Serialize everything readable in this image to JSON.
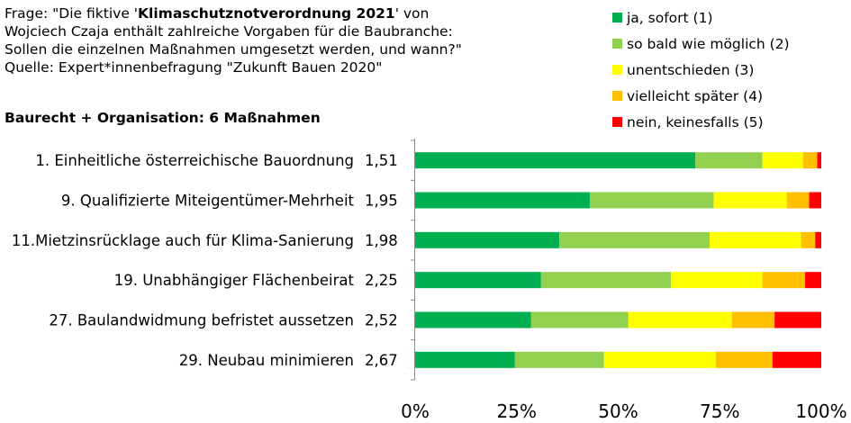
{
  "header": {
    "line1_prefix": "Frage: \"Die fiktive '",
    "line1_bold": "Klimaschutznotverordnung 2021",
    "line1_suffix": "' von",
    "line2": "Wojciech Czaja enthält zahlreiche Vorgaben für die Baubranche:",
    "line3": "Sollen die einzelnen Maßnahmen umgesetzt werden, und wann?\"",
    "line4": "Quelle: Expert*innenbefragung \"Zukunft Bauen 2020\"",
    "subtitle": "Baurecht + Organisation: 6 Maßnahmen"
  },
  "legend": [
    {
      "label": "ja, sofort (1)",
      "color": "#00B050"
    },
    {
      "label": "so bald wie möglich (2)",
      "color": "#92D050"
    },
    {
      "label": "unentschieden (3)",
      "color": "#FFFF00"
    },
    {
      "label": "vielleicht später (4)",
      "color": "#FFC000"
    },
    {
      "label": "nein, keinesfalls (5)",
      "color": "#FF0000"
    }
  ],
  "chart_data": {
    "type": "bar",
    "orientation": "horizontal",
    "stacked": true,
    "stacking": "percent",
    "categories": [
      "1. Einheitliche österreichische Bauordnung",
      "9. Qualifizierte Miteigentümer-Mehrheit",
      "11.Mietzinsrücklage auch für Klima-Sanierung",
      "19. Unabhängiger Flächenbeirat",
      "27. Baulandwidmung befristet aussetzen",
      "29. Neubau minimieren"
    ],
    "category_values": [
      "1,51",
      "1,95",
      "1,98",
      "2,25",
      "2,52",
      "2,67"
    ],
    "series": [
      {
        "name": "ja, sofort (1)",
        "color": "#00B050",
        "values": [
          69,
          43,
          35.5,
          31,
          28.5,
          24.5
        ]
      },
      {
        "name": "so bald wie möglich (2)",
        "color": "#92D050",
        "values": [
          16.5,
          30.5,
          37,
          32,
          24,
          22
        ]
      },
      {
        "name": "unentschieden (3)",
        "color": "#FFFF00",
        "values": [
          10,
          18,
          22.5,
          22.5,
          25.5,
          27.5
        ]
      },
      {
        "name": "vielleicht später (4)",
        "color": "#FFC000",
        "values": [
          3.5,
          5.5,
          3.5,
          10.5,
          10.5,
          14
        ]
      },
      {
        "name": "nein, keinesfalls (5)",
        "color": "#FF0000",
        "values": [
          1,
          3,
          1.5,
          4,
          11.5,
          12
        ]
      }
    ],
    "xticks": [
      "0%",
      "25%",
      "50%",
      "75%",
      "100%"
    ],
    "xlim": [
      0,
      100
    ],
    "grid": false,
    "legend_position": "top-right"
  }
}
